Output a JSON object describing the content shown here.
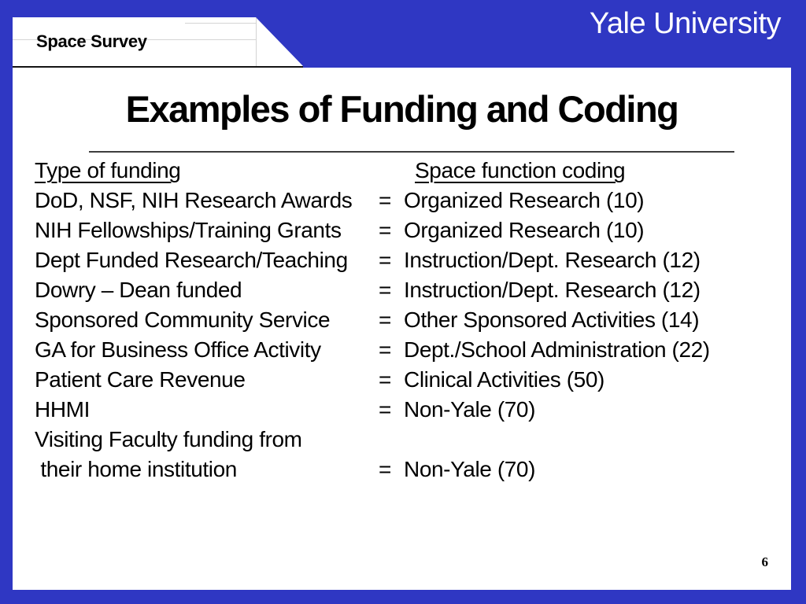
{
  "header": {
    "tab_label": "Space Survey",
    "brand": "Yale University"
  },
  "content": {
    "title": "Examples of Funding and Coding"
  },
  "footer": {
    "page_number": "6"
  },
  "colors": {
    "frame_blue": "#2f37c3",
    "content_white": "#ffffff",
    "text_black": "#000000",
    "tab_underline_dark": "#141414",
    "divider_gray": "#3d3d3d",
    "faint_grid_gray": "#d4d4d4"
  },
  "table": {
    "headers": {
      "funding": "Type of funding",
      "coding": "Space function coding"
    },
    "rows": [
      {
        "funding": "DoD, NSF, NIH Research Awards",
        "eq": "=",
        "coding": "Organized Research (10)"
      },
      {
        "funding": "NIH Fellowships/Training Grants",
        "eq": "=",
        "coding": "Organized Research (10)"
      },
      {
        "funding": "Dept Funded Research/Teaching",
        "eq": "=",
        "coding": "Instruction/Dept. Research (12)"
      },
      {
        "funding": "Dowry – Dean funded",
        "eq": "=",
        "coding": "Instruction/Dept. Research (12)"
      },
      {
        "funding": "Sponsored Community Service",
        "eq": "=",
        "coding": "Other Sponsored Activities (14)"
      },
      {
        "funding": "GA for Business Office Activity",
        "eq": "=",
        "coding": "Dept./School Administration (22)"
      },
      {
        "funding": "Patient Care Revenue",
        "eq": "=",
        "coding": "Clinical Activities (50)"
      },
      {
        "funding": "HHMI",
        "eq": "=",
        "coding": "Non-Yale (70)"
      },
      {
        "funding": "Visiting Faculty funding from",
        "eq": "",
        "coding": ""
      },
      {
        "funding": " their home institution",
        "eq": "=",
        "coding": "Non-Yale (70)"
      }
    ]
  }
}
